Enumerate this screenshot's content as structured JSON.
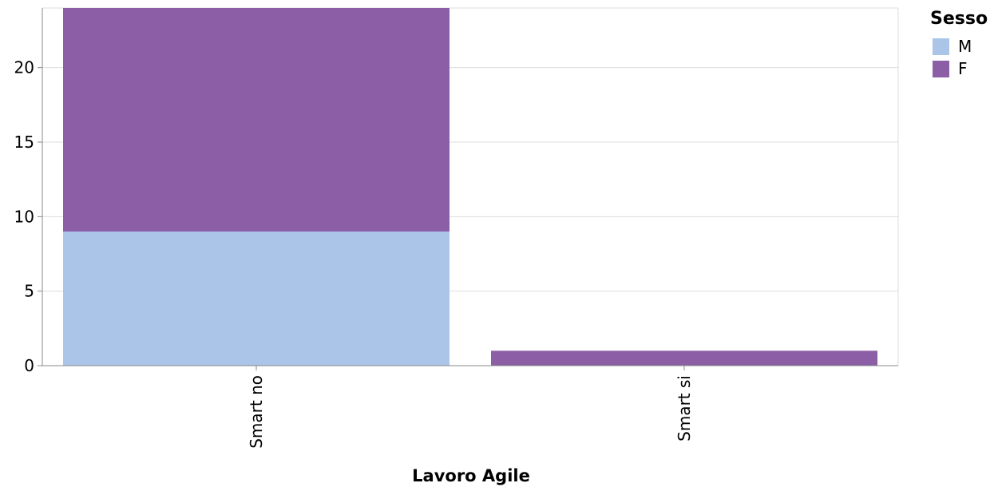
{
  "chart_data": {
    "type": "bar",
    "stacked": true,
    "title": "",
    "xlabel": "Lavoro Agile",
    "ylabel": "",
    "categories": [
      "Smart no",
      "Smart si"
    ],
    "series": [
      {
        "name": "M",
        "color": "#aac5e8",
        "values": [
          9,
          0
        ]
      },
      {
        "name": "F",
        "color": "#8b5ea6",
        "values": [
          15,
          1
        ]
      }
    ],
    "ylim": [
      0,
      24
    ],
    "yticks": [
      0,
      5,
      10,
      15,
      20
    ],
    "grid": true,
    "legend": {
      "title": "Sesso",
      "position": "top-right"
    }
  }
}
